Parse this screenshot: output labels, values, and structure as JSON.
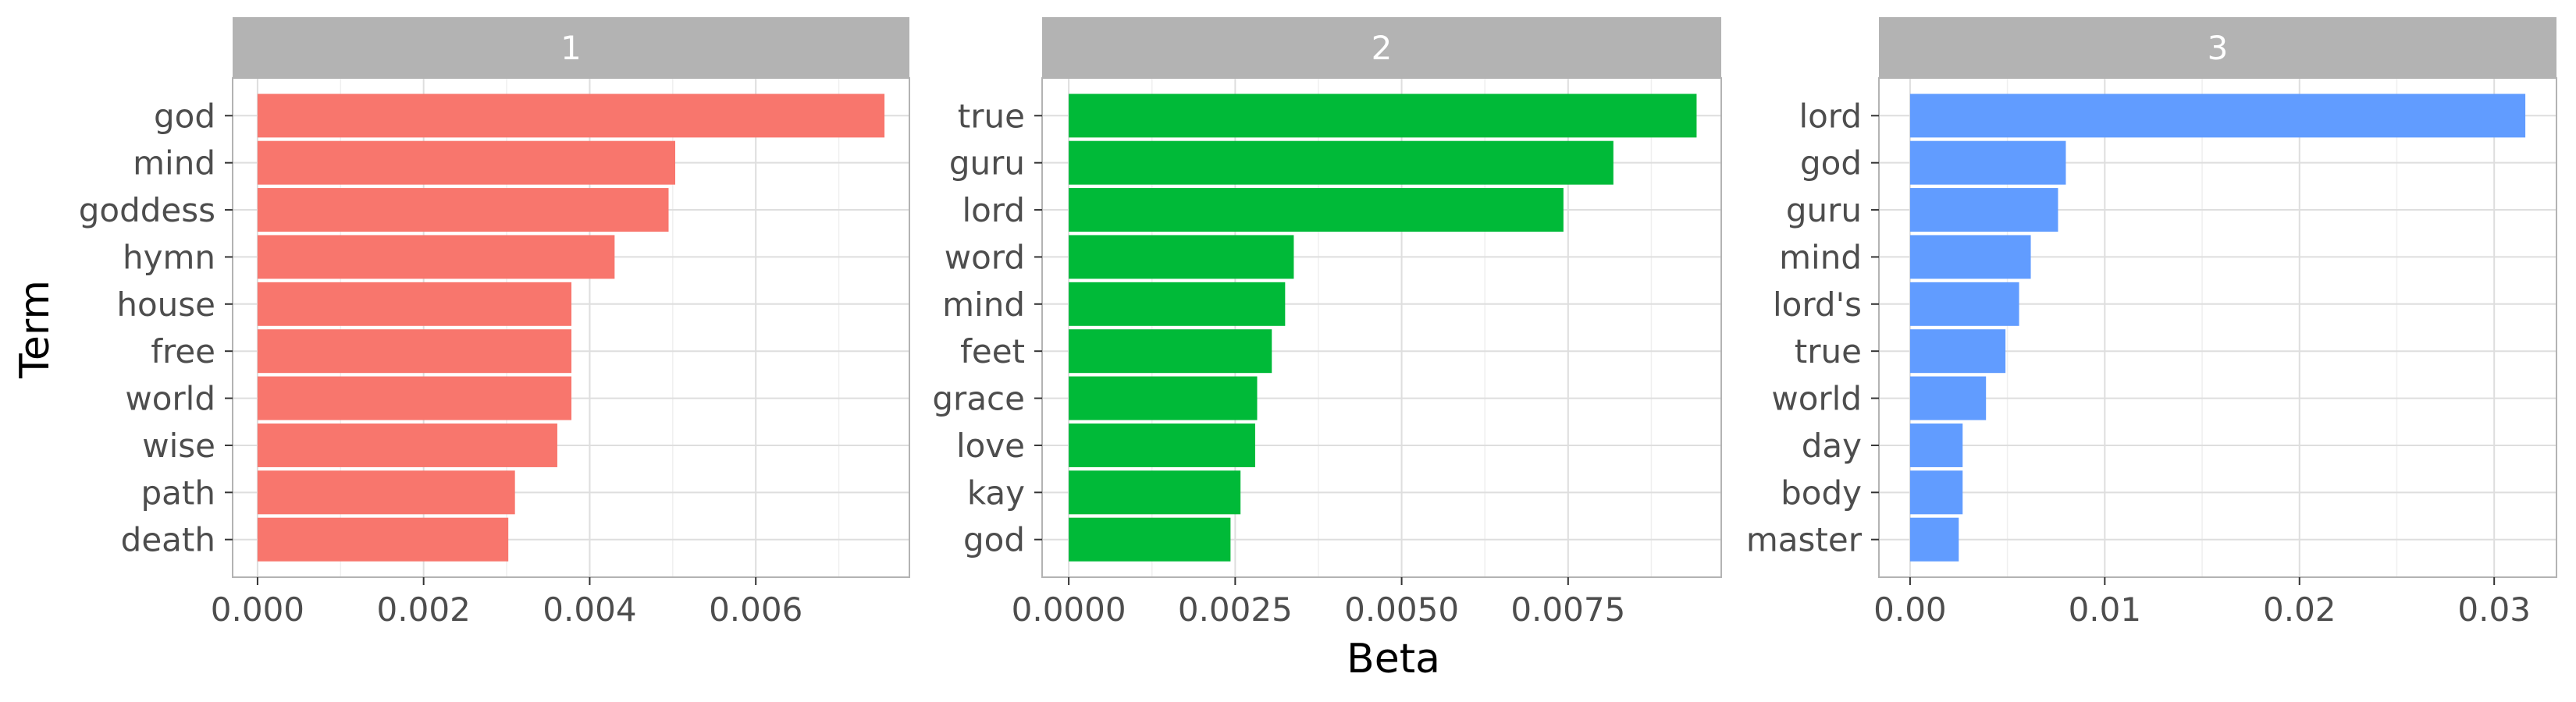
{
  "chart_data": {
    "type": "bar",
    "orientation": "horizontal",
    "facet_layout": "1 row x 3 columns",
    "xlabel": "Beta",
    "ylabel": "Term",
    "grid": true,
    "legend": "none",
    "facets": [
      {
        "strip_label": "1",
        "color": "#F8766D",
        "categories": [
          "god",
          "mind",
          "goddess",
          "hymn",
          "house",
          "free",
          "world",
          "wise",
          "path",
          "death"
        ],
        "values": [
          0.00755,
          0.00503,
          0.00495,
          0.0043,
          0.00378,
          0.00378,
          0.00378,
          0.00361,
          0.0031,
          0.00302
        ],
        "xlim": [
          -0.0003,
          0.00785
        ],
        "xticks": [
          0,
          0.002,
          0.004,
          0.006
        ],
        "xtick_labels": [
          "0.000",
          "0.002",
          "0.004",
          "0.006"
        ]
      },
      {
        "strip_label": "2",
        "color": "#00BA38",
        "categories": [
          "true",
          "guru",
          "lord",
          "word",
          "mind",
          "feet",
          "grace",
          "love",
          "kay",
          "god"
        ],
        "values": [
          0.00943,
          0.00818,
          0.00743,
          0.00338,
          0.00325,
          0.00305,
          0.00283,
          0.0028,
          0.00258,
          0.00243
        ],
        "xlim": [
          -0.0004,
          0.0098
        ],
        "xticks": [
          0,
          0.0025,
          0.005,
          0.0075
        ],
        "xtick_labels": [
          "0.0000",
          "0.0025",
          "0.0050",
          "0.0075"
        ]
      },
      {
        "strip_label": "3",
        "color": "#619CFF",
        "categories": [
          "lord",
          "god",
          "guru",
          "mind",
          "lord's",
          "true",
          "world",
          "day",
          "body",
          "master"
        ],
        "values": [
          0.0316,
          0.008,
          0.0076,
          0.0062,
          0.0056,
          0.0049,
          0.0039,
          0.0027,
          0.0027,
          0.0025
        ],
        "xlim": [
          -0.0016,
          0.0332
        ],
        "xticks": [
          0,
          0.01,
          0.02,
          0.03
        ],
        "xtick_labels": [
          "0.00",
          "0.01",
          "0.02",
          "0.03"
        ]
      }
    ]
  },
  "colors": {
    "strip_background": "#B3B3B3",
    "panel_border": "#B3B3B3",
    "grid_major": "#DEDEDE",
    "grid_minor": "#EFEFEF",
    "tick_text": "#4D4D4D"
  }
}
